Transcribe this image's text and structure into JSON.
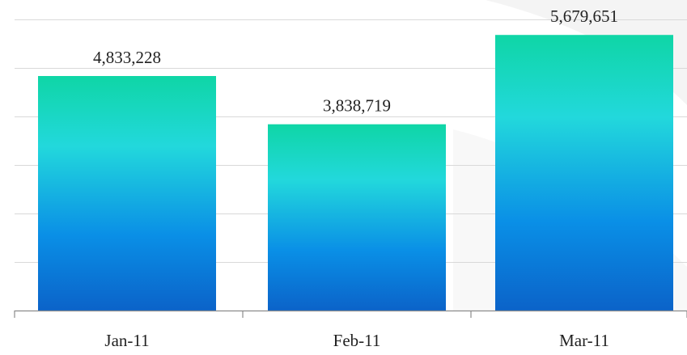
{
  "chart_data": {
    "type": "bar",
    "categories": [
      "Jan-11",
      "Feb-11",
      "Mar-11"
    ],
    "values": [
      4833228,
      3838719,
      5679651
    ],
    "data_labels": [
      "4,833,228",
      "3,838,719",
      "5,679,651"
    ],
    "ylim": [
      0,
      6500000
    ],
    "gridline_step": 1000000,
    "grid": true,
    "legend": "none",
    "colors": {
      "bar_top": "#0fd6a6",
      "bar_mid": "#22d8dc",
      "bar_low": "#0a8fe6",
      "bar_bottom": "#0b63c9",
      "gridline": "#d9d9d9",
      "axis": "#8c8c8c",
      "watermark": "#f4f4f4"
    }
  }
}
